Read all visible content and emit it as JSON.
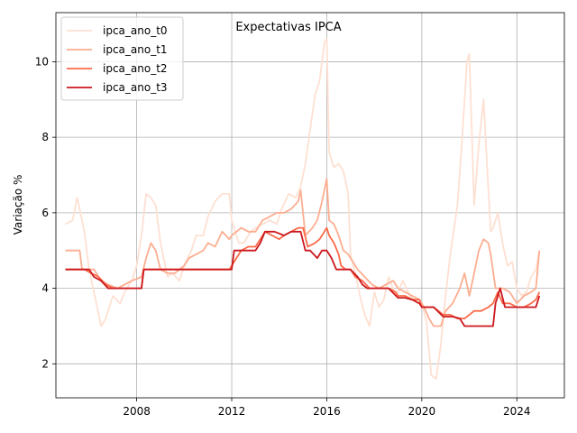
{
  "chart_data": {
    "type": "line",
    "title": "Expectativas IPCA",
    "xlabel": "",
    "ylabel": "Variação %",
    "xlim": [
      2004.6,
      2026.0
    ],
    "ylim": [
      1.1,
      11.3
    ],
    "xticks": [
      2008,
      2012,
      2016,
      2020,
      2024
    ],
    "yticks": [
      2,
      4,
      6,
      8,
      10
    ],
    "grid": true,
    "legend_position": "top-left",
    "series": [
      {
        "name": "ipca_ano_t0",
        "color": "#fee0d2",
        "points": [
          [
            2005.0,
            5.7
          ],
          [
            2005.3,
            5.8
          ],
          [
            2005.5,
            6.4
          ],
          [
            2005.8,
            5.5
          ],
          [
            2006.0,
            4.5
          ],
          [
            2006.3,
            3.6
          ],
          [
            2006.5,
            3.0
          ],
          [
            2006.7,
            3.2
          ],
          [
            2007.0,
            3.8
          ],
          [
            2007.3,
            3.6
          ],
          [
            2007.5,
            3.9
          ],
          [
            2007.8,
            4.2
          ],
          [
            2008.0,
            4.6
          ],
          [
            2008.2,
            5.4
          ],
          [
            2008.4,
            6.5
          ],
          [
            2008.6,
            6.4
          ],
          [
            2008.8,
            6.2
          ],
          [
            2009.0,
            5.2
          ],
          [
            2009.3,
            4.3
          ],
          [
            2009.5,
            4.4
          ],
          [
            2009.8,
            4.2
          ],
          [
            2010.0,
            4.6
          ],
          [
            2010.3,
            5.0
          ],
          [
            2010.5,
            5.4
          ],
          [
            2010.8,
            5.4
          ],
          [
            2011.0,
            5.9
          ],
          [
            2011.3,
            6.3
          ],
          [
            2011.6,
            6.5
          ],
          [
            2011.9,
            6.5
          ],
          [
            2012.0,
            5.8
          ],
          [
            2012.3,
            5.2
          ],
          [
            2012.5,
            5.2
          ],
          [
            2012.8,
            5.5
          ],
          [
            2013.0,
            5.6
          ],
          [
            2013.3,
            5.7
          ],
          [
            2013.6,
            5.8
          ],
          [
            2013.9,
            5.7
          ],
          [
            2014.1,
            6.1
          ],
          [
            2014.4,
            6.5
          ],
          [
            2014.7,
            6.4
          ],
          [
            2014.9,
            6.7
          ],
          [
            2015.1,
            7.3
          ],
          [
            2015.3,
            8.2
          ],
          [
            2015.5,
            9.1
          ],
          [
            2015.7,
            9.5
          ],
          [
            2015.9,
            10.5
          ],
          [
            2016.0,
            10.6
          ],
          [
            2016.1,
            7.6
          ],
          [
            2016.3,
            7.2
          ],
          [
            2016.5,
            7.3
          ],
          [
            2016.7,
            7.1
          ],
          [
            2016.9,
            6.5
          ],
          [
            2017.0,
            4.9
          ],
          [
            2017.2,
            4.4
          ],
          [
            2017.4,
            3.8
          ],
          [
            2017.6,
            3.3
          ],
          [
            2017.8,
            3.0
          ],
          [
            2018.0,
            3.9
          ],
          [
            2018.2,
            3.5
          ],
          [
            2018.4,
            3.7
          ],
          [
            2018.6,
            4.3
          ],
          [
            2018.9,
            3.8
          ],
          [
            2019.0,
            3.9
          ],
          [
            2019.2,
            4.2
          ],
          [
            2019.5,
            3.8
          ],
          [
            2019.8,
            3.6
          ],
          [
            2020.0,
            3.6
          ],
          [
            2020.2,
            3.1
          ],
          [
            2020.4,
            1.7
          ],
          [
            2020.6,
            1.6
          ],
          [
            2020.8,
            2.5
          ],
          [
            2021.0,
            3.8
          ],
          [
            2021.2,
            4.9
          ],
          [
            2021.5,
            6.2
          ],
          [
            2021.7,
            8.0
          ],
          [
            2021.9,
            10.0
          ],
          [
            2022.0,
            10.2
          ],
          [
            2022.2,
            6.2
          ],
          [
            2022.4,
            7.8
          ],
          [
            2022.6,
            9.0
          ],
          [
            2022.7,
            7.8
          ],
          [
            2022.9,
            5.5
          ],
          [
            2023.0,
            5.6
          ],
          [
            2023.2,
            6.0
          ],
          [
            2023.4,
            5.2
          ],
          [
            2023.6,
            4.6
          ],
          [
            2023.8,
            4.7
          ],
          [
            2024.0,
            4.0
          ],
          [
            2024.2,
            3.8
          ],
          [
            2024.4,
            3.9
          ],
          [
            2024.6,
            4.3
          ],
          [
            2024.8,
            4.5
          ],
          [
            2024.95,
            5.0
          ]
        ]
      },
      {
        "name": "ipca_ano_t1",
        "color": "#fcae91",
        "points": [
          [
            2005.0,
            5.0
          ],
          [
            2005.4,
            5.0
          ],
          [
            2005.6,
            5.0
          ],
          [
            2005.7,
            4.5
          ],
          [
            2006.2,
            4.5
          ],
          [
            2006.5,
            4.2
          ],
          [
            2006.8,
            4.1
          ],
          [
            2007.2,
            4.0
          ],
          [
            2007.5,
            4.1
          ],
          [
            2007.8,
            4.2
          ],
          [
            2008.2,
            4.3
          ],
          [
            2008.4,
            4.8
          ],
          [
            2008.6,
            5.2
          ],
          [
            2008.8,
            5.0
          ],
          [
            2009.0,
            4.5
          ],
          [
            2009.3,
            4.4
          ],
          [
            2009.6,
            4.4
          ],
          [
            2010.0,
            4.6
          ],
          [
            2010.2,
            4.8
          ],
          [
            2010.5,
            4.9
          ],
          [
            2010.8,
            5.0
          ],
          [
            2011.0,
            5.2
          ],
          [
            2011.3,
            5.1
          ],
          [
            2011.6,
            5.5
          ],
          [
            2011.9,
            5.3
          ],
          [
            2012.0,
            5.4
          ],
          [
            2012.4,
            5.6
          ],
          [
            2012.7,
            5.5
          ],
          [
            2013.0,
            5.5
          ],
          [
            2013.3,
            5.8
          ],
          [
            2013.6,
            5.9
          ],
          [
            2013.9,
            6.0
          ],
          [
            2014.2,
            6.0
          ],
          [
            2014.5,
            6.1
          ],
          [
            2014.8,
            6.3
          ],
          [
            2014.9,
            6.6
          ],
          [
            2015.1,
            5.4
          ],
          [
            2015.4,
            5.6
          ],
          [
            2015.6,
            5.8
          ],
          [
            2015.8,
            6.3
          ],
          [
            2016.0,
            6.9
          ],
          [
            2016.1,
            5.8
          ],
          [
            2016.3,
            5.7
          ],
          [
            2016.5,
            5.4
          ],
          [
            2016.7,
            5.0
          ],
          [
            2016.9,
            4.9
          ],
          [
            2017.0,
            4.8
          ],
          [
            2017.3,
            4.5
          ],
          [
            2017.6,
            4.3
          ],
          [
            2017.9,
            4.1
          ],
          [
            2018.2,
            4.0
          ],
          [
            2018.5,
            4.1
          ],
          [
            2018.8,
            4.2
          ],
          [
            2019.0,
            4.0
          ],
          [
            2019.3,
            3.9
          ],
          [
            2019.6,
            3.8
          ],
          [
            2019.9,
            3.7
          ],
          [
            2020.1,
            3.5
          ],
          [
            2020.3,
            3.2
          ],
          [
            2020.5,
            3.0
          ],
          [
            2020.8,
            3.0
          ],
          [
            2021.0,
            3.4
          ],
          [
            2021.3,
            3.6
          ],
          [
            2021.6,
            4.0
          ],
          [
            2021.8,
            4.4
          ],
          [
            2022.0,
            3.8
          ],
          [
            2022.2,
            4.4
          ],
          [
            2022.4,
            5.0
          ],
          [
            2022.6,
            5.3
          ],
          [
            2022.8,
            5.2
          ],
          [
            2022.9,
            4.9
          ],
          [
            2023.1,
            4.0
          ],
          [
            2023.4,
            4.0
          ],
          [
            2023.7,
            3.9
          ],
          [
            2024.0,
            3.6
          ],
          [
            2024.3,
            3.8
          ],
          [
            2024.6,
            3.9
          ],
          [
            2024.8,
            4.0
          ],
          [
            2024.95,
            5.0
          ]
        ]
      },
      {
        "name": "ipca_ano_t2",
        "color": "#fb6a4a",
        "points": [
          [
            2005.0,
            4.5
          ],
          [
            2005.5,
            4.5
          ],
          [
            2005.8,
            4.5
          ],
          [
            2006.1,
            4.4
          ],
          [
            2006.4,
            4.3
          ],
          [
            2006.7,
            4.1
          ],
          [
            2007.0,
            4.0
          ],
          [
            2007.5,
            4.0
          ],
          [
            2008.0,
            4.0
          ],
          [
            2008.2,
            4.0
          ],
          [
            2008.3,
            4.5
          ],
          [
            2009.0,
            4.5
          ],
          [
            2010.0,
            4.5
          ],
          [
            2011.0,
            4.5
          ],
          [
            2011.9,
            4.5
          ],
          [
            2012.0,
            4.6
          ],
          [
            2012.2,
            4.8
          ],
          [
            2012.4,
            5.0
          ],
          [
            2012.7,
            5.1
          ],
          [
            2013.0,
            5.1
          ],
          [
            2013.2,
            5.3
          ],
          [
            2013.4,
            5.5
          ],
          [
            2013.7,
            5.4
          ],
          [
            2014.0,
            5.3
          ],
          [
            2014.2,
            5.4
          ],
          [
            2014.5,
            5.5
          ],
          [
            2014.8,
            5.6
          ],
          [
            2015.0,
            5.6
          ],
          [
            2015.2,
            5.1
          ],
          [
            2015.5,
            5.2
          ],
          [
            2015.7,
            5.3
          ],
          [
            2015.9,
            5.5
          ],
          [
            2016.0,
            5.6
          ],
          [
            2016.1,
            5.4
          ],
          [
            2016.3,
            5.2
          ],
          [
            2016.5,
            4.9
          ],
          [
            2016.6,
            4.6
          ],
          [
            2016.8,
            4.5
          ],
          [
            2017.0,
            4.5
          ],
          [
            2017.2,
            4.3
          ],
          [
            2017.5,
            4.2
          ],
          [
            2017.8,
            4.0
          ],
          [
            2018.0,
            4.0
          ],
          [
            2018.3,
            4.0
          ],
          [
            2018.6,
            4.0
          ],
          [
            2018.9,
            3.9
          ],
          [
            2019.0,
            3.8
          ],
          [
            2019.3,
            3.8
          ],
          [
            2019.6,
            3.7
          ],
          [
            2019.9,
            3.7
          ],
          [
            2020.0,
            3.5
          ],
          [
            2020.5,
            3.5
          ],
          [
            2020.9,
            3.3
          ],
          [
            2021.2,
            3.3
          ],
          [
            2021.5,
            3.2
          ],
          [
            2021.8,
            3.2
          ],
          [
            2022.0,
            3.3
          ],
          [
            2022.2,
            3.4
          ],
          [
            2022.5,
            3.4
          ],
          [
            2022.8,
            3.5
          ],
          [
            2023.0,
            3.6
          ],
          [
            2023.2,
            3.9
          ],
          [
            2023.4,
            3.6
          ],
          [
            2023.7,
            3.6
          ],
          [
            2024.0,
            3.5
          ],
          [
            2024.3,
            3.5
          ],
          [
            2024.6,
            3.6
          ],
          [
            2024.8,
            3.7
          ],
          [
            2024.95,
            3.9
          ]
        ]
      },
      {
        "name": "ipca_ano_t3",
        "color": "#cb181d",
        "points": [
          [
            2005.0,
            4.5
          ],
          [
            2005.8,
            4.5
          ],
          [
            2006.0,
            4.5
          ],
          [
            2006.2,
            4.3
          ],
          [
            2006.5,
            4.2
          ],
          [
            2006.8,
            4.0
          ],
          [
            2007.0,
            4.0
          ],
          [
            2008.0,
            4.0
          ],
          [
            2008.2,
            4.0
          ],
          [
            2008.3,
            4.5
          ],
          [
            2009.0,
            4.5
          ],
          [
            2010.0,
            4.5
          ],
          [
            2011.0,
            4.5
          ],
          [
            2011.9,
            4.5
          ],
          [
            2012.0,
            4.5
          ],
          [
            2012.1,
            5.0
          ],
          [
            2012.5,
            5.0
          ],
          [
            2013.0,
            5.0
          ],
          [
            2013.2,
            5.2
          ],
          [
            2013.4,
            5.5
          ],
          [
            2013.8,
            5.5
          ],
          [
            2014.2,
            5.4
          ],
          [
            2014.5,
            5.5
          ],
          [
            2014.9,
            5.5
          ],
          [
            2015.1,
            5.0
          ],
          [
            2015.3,
            5.0
          ],
          [
            2015.6,
            4.8
          ],
          [
            2015.8,
            5.0
          ],
          [
            2016.0,
            5.0
          ],
          [
            2016.2,
            4.8
          ],
          [
            2016.4,
            4.5
          ],
          [
            2016.6,
            4.5
          ],
          [
            2017.0,
            4.5
          ],
          [
            2017.3,
            4.3
          ],
          [
            2017.5,
            4.1
          ],
          [
            2017.7,
            4.0
          ],
          [
            2018.0,
            4.0
          ],
          [
            2018.3,
            4.0
          ],
          [
            2018.6,
            4.0
          ],
          [
            2019.0,
            3.75
          ],
          [
            2019.3,
            3.75
          ],
          [
            2019.6,
            3.7
          ],
          [
            2019.9,
            3.6
          ],
          [
            2020.0,
            3.5
          ],
          [
            2020.5,
            3.5
          ],
          [
            2020.9,
            3.25
          ],
          [
            2021.3,
            3.25
          ],
          [
            2021.6,
            3.2
          ],
          [
            2021.8,
            3.0
          ],
          [
            2022.2,
            3.0
          ],
          [
            2022.6,
            3.0
          ],
          [
            2023.0,
            3.0
          ],
          [
            2023.1,
            3.6
          ],
          [
            2023.3,
            4.0
          ],
          [
            2023.5,
            3.5
          ],
          [
            2023.8,
            3.5
          ],
          [
            2024.2,
            3.5
          ],
          [
            2024.6,
            3.5
          ],
          [
            2024.8,
            3.5
          ],
          [
            2024.95,
            3.8
          ]
        ]
      }
    ]
  }
}
